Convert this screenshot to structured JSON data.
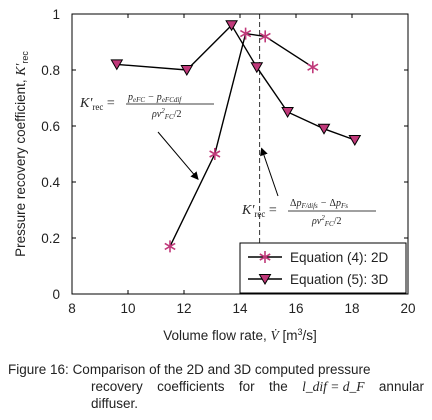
{
  "chart_data": {
    "type": "line",
    "xlabel": "Volume flow rate, V̇ [m³/s]",
    "ylabel": "Pressure recovery coefficient, K′rec",
    "xlim": [
      8,
      20
    ],
    "ylim": [
      0,
      1
    ],
    "xticks": [
      "8",
      "10",
      "12",
      "14",
      "16",
      "18",
      "20"
    ],
    "yticks": [
      "0",
      "0.2",
      "0.4",
      "0.6",
      "0.8",
      "1"
    ],
    "grid": false,
    "legend_position": "bottom-right",
    "series": [
      {
        "name": "Equation (4): 2D",
        "marker": "star",
        "color": "#c0397a",
        "x": [
          11.5,
          13.1,
          14.2,
          14.9,
          16.6
        ],
        "y": [
          0.17,
          0.5,
          0.93,
          0.92,
          0.81
        ]
      },
      {
        "name": "Equation (5): 3D",
        "marker": "triangle-down",
        "color": "#c0397a",
        "x": [
          9.6,
          12.1,
          13.7,
          14.6,
          15.7,
          17.0,
          18.1
        ],
        "y": [
          0.82,
          0.8,
          0.96,
          0.81,
          0.65,
          0.59,
          0.55
        ]
      }
    ],
    "vline": {
      "x": 14.7,
      "style": "dashed"
    },
    "annotations": [
      {
        "id": "eq2d",
        "text": "K′rec = (p_eFC − p_eFCdif) / (ρ v²FC / 2)",
        "points_to": {
          "x": 12.5,
          "y": 0.41
        }
      },
      {
        "id": "eq3d",
        "text": "K′rec = (Δp_F/difs − Δp_Fs) / (ρ v²FC / 2)",
        "points_to": {
          "x": 14.7,
          "y": 0.52
        }
      }
    ]
  },
  "caption": {
    "prefix": "Figure 16:",
    "line1": "Comparison of the 2D and 3D computed pressure",
    "line2_words": [
      "recovery",
      "coefficients",
      "for",
      "the",
      "l_dif = d_F",
      "annular"
    ],
    "line3": "diffuser."
  }
}
